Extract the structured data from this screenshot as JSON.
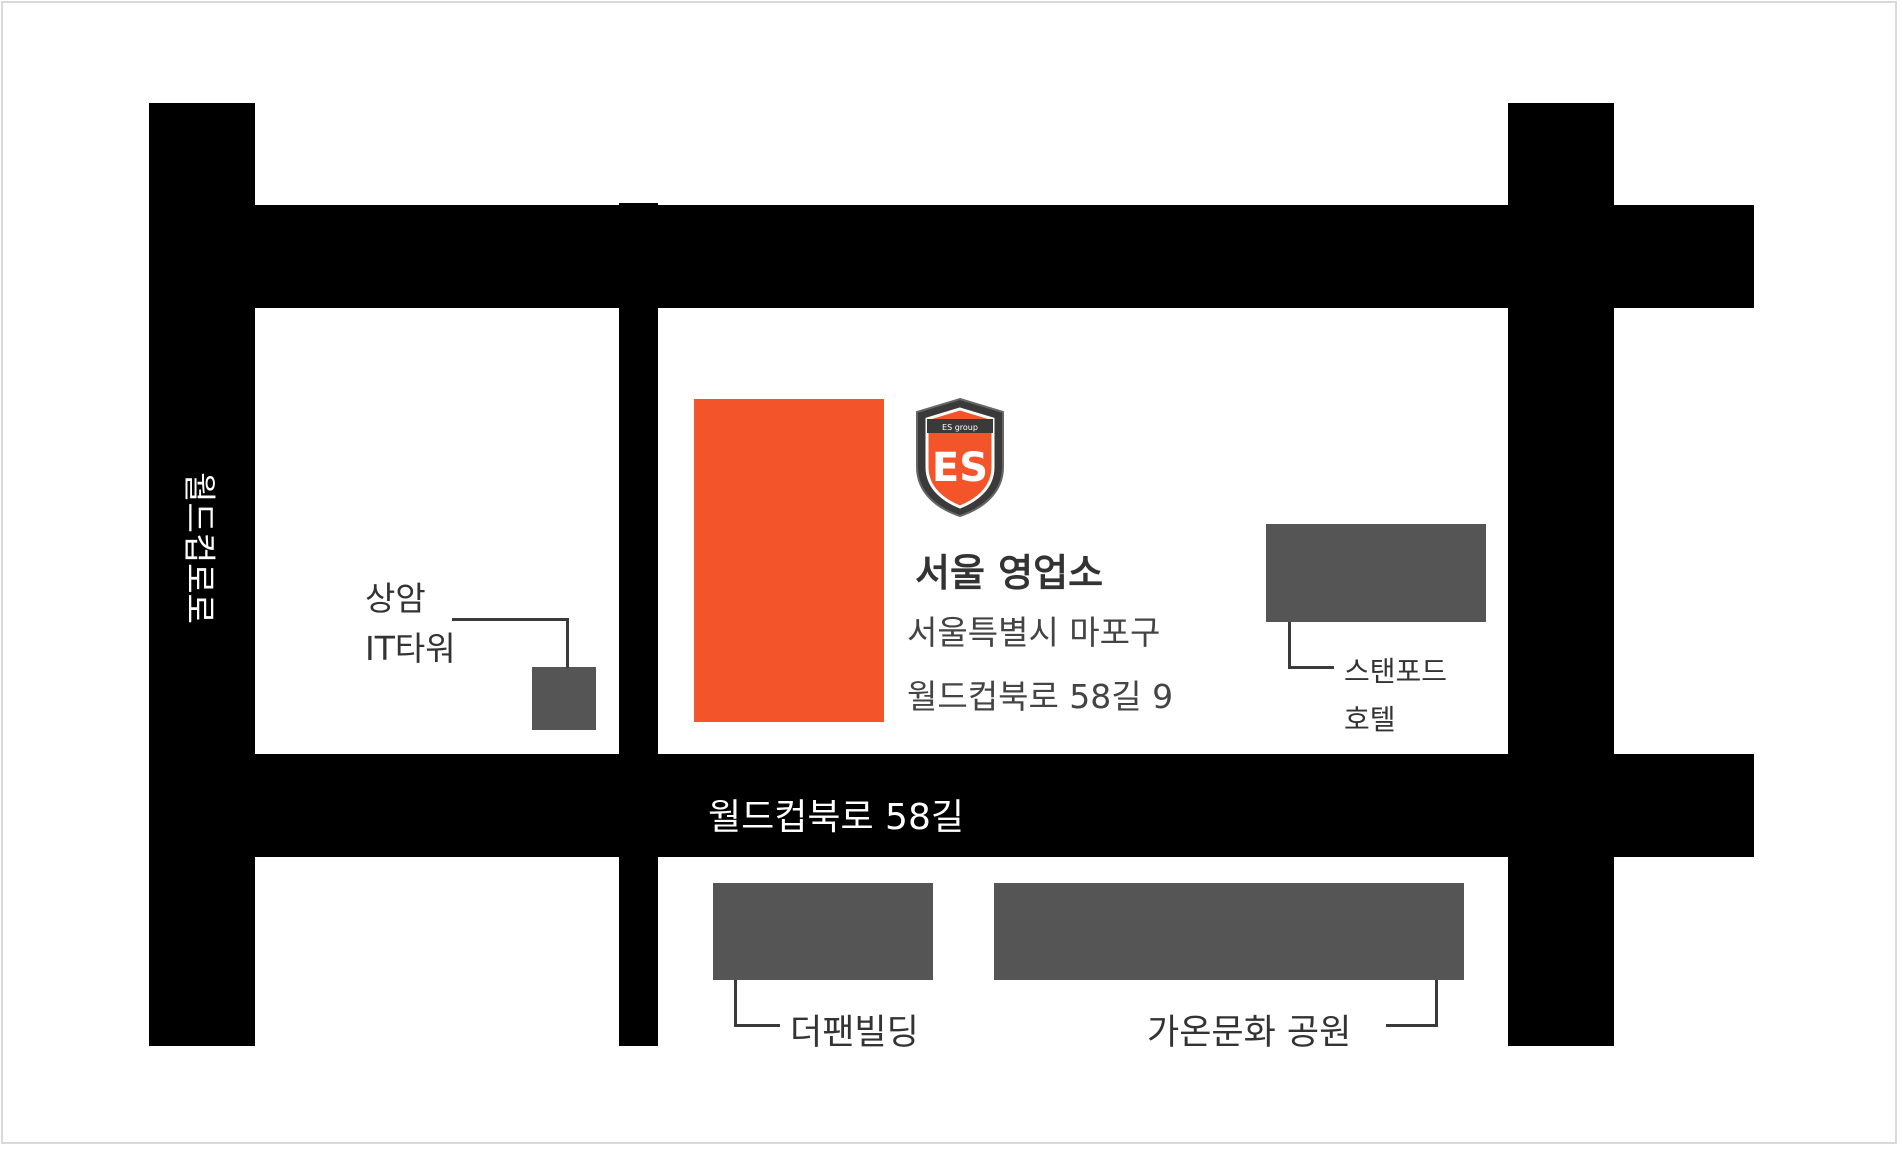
{
  "colors": {
    "road": "#000000",
    "building": "#555555",
    "office_block": "#f4542a",
    "frame_border": "#d9d9d9"
  },
  "roads": {
    "main_horizontal": "월드컵북로 58길",
    "left_vertical": "월드컵로로"
  },
  "office": {
    "logo_text": "ES",
    "logo_subtext": "ES group",
    "name": "서울 영업소",
    "address_line1": "서울특별시 마포구",
    "address_line2": "월드컵북로 58길 9"
  },
  "landmarks": {
    "sangam_it_tower_line1": "상암",
    "sangam_it_tower_line2": "IT타워",
    "stanford_hotel_line1": "스탠포드",
    "stanford_hotel_line2": "호텔",
    "the_pan_building": "더팬빌딩",
    "gaon_park": "가온문화 공원"
  }
}
